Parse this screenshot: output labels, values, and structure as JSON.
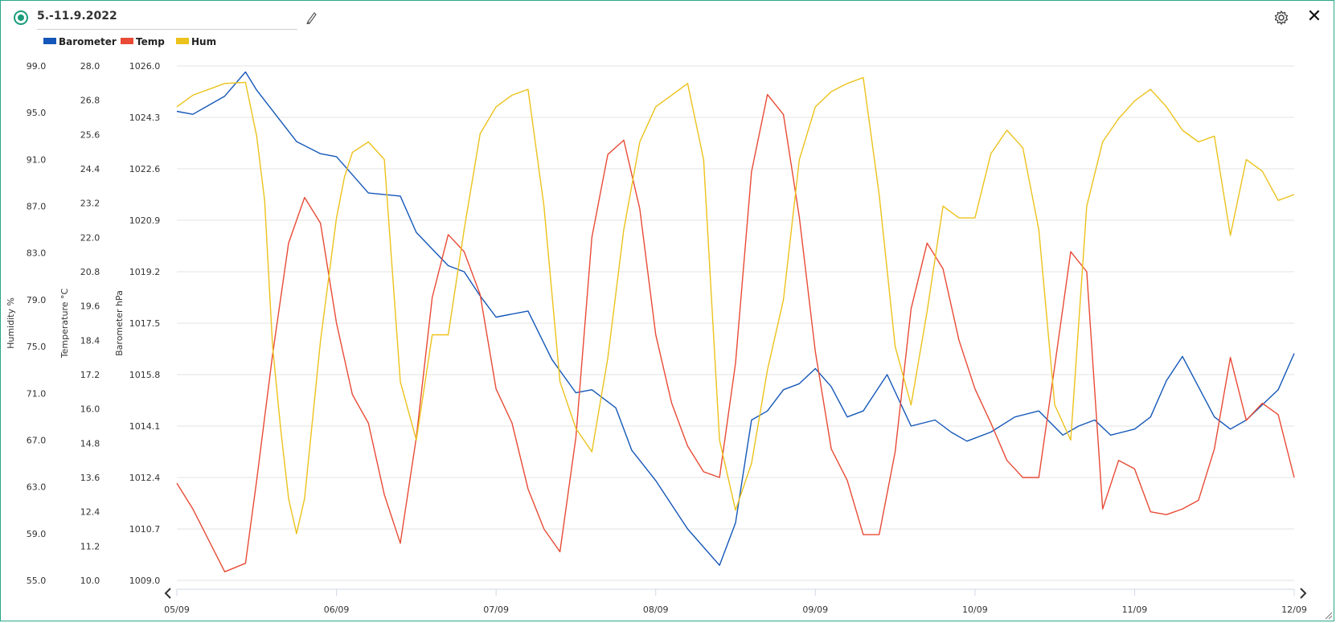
{
  "header": {
    "title": "5.-11.9.2022",
    "accent_color": "#1a9c7b",
    "icons": [
      "status-indicator-icon",
      "pencil-icon",
      "gear-icon",
      "close-icon",
      "chevron-left-icon",
      "chevron-right-icon",
      "resize-grip-icon"
    ]
  },
  "legend": {
    "items": [
      {
        "label": "Barometer",
        "color": "#1457b8"
      },
      {
        "label": "Temp",
        "color": "#e84a35"
      },
      {
        "label": "Hum",
        "color": "#ecc21c"
      }
    ]
  },
  "chart_data": {
    "type": "line",
    "x_unit": "days",
    "x_ticks": [
      "05/09",
      "06/09",
      "07/09",
      "08/09",
      "09/09",
      "10/09",
      "11/09",
      "12/09"
    ],
    "xlim": [
      "05/09",
      "12/09"
    ],
    "grid": true,
    "legend_position": "top-left",
    "axes": [
      {
        "id": "hum",
        "label": "Humidity %",
        "min": 55.0,
        "max": 99.0,
        "ticks": [
          "99.0",
          "95.0",
          "91.0",
          "87.0",
          "83.0",
          "79.0",
          "75.0",
          "71.0",
          "67.0",
          "63.0",
          "59.0",
          "55.0"
        ]
      },
      {
        "id": "temp",
        "label": "Temperature °C",
        "min": 10.0,
        "max": 28.0,
        "ticks": [
          "28.0",
          "26.8",
          "25.6",
          "24.4",
          "23.2",
          "22.0",
          "20.8",
          "19.6",
          "18.4",
          "17.2",
          "16.0",
          "14.8",
          "13.6",
          "12.4",
          "11.2",
          "10.0"
        ]
      },
      {
        "id": "baro",
        "label": "Barometer hPa",
        "min": 1009.0,
        "max": 1026.0,
        "ticks": [
          "1026.0",
          "1024.3",
          "1022.6",
          "1020.9",
          "1019.2",
          "1017.5",
          "1015.8",
          "1014.1",
          "1012.4",
          "1010.7",
          "1009.0"
        ]
      }
    ],
    "series": [
      {
        "name": "Barometer",
        "axis": "baro",
        "color": "#1457b8",
        "x": [
          0,
          0.1,
          0.3,
          0.43,
          0.5,
          0.75,
          0.9,
          1.0,
          1.2,
          1.4,
          1.5,
          1.7,
          1.8,
          1.9,
          2.0,
          2.2,
          2.35,
          2.5,
          2.6,
          2.75,
          2.85,
          3.0,
          3.2,
          3.4,
          3.5,
          3.6,
          3.7,
          3.8,
          3.9,
          4.0,
          4.1,
          4.2,
          4.3,
          4.45,
          4.6,
          4.75,
          4.85,
          4.95,
          5.1,
          5.25,
          5.4,
          5.55,
          5.65,
          5.75,
          5.85,
          6.0,
          6.1,
          6.2,
          6.3,
          6.5,
          6.6,
          6.7,
          6.8,
          6.9,
          7.0
        ],
        "y": [
          1024.5,
          1024.4,
          1025.0,
          1025.8,
          1025.2,
          1023.5,
          1023.1,
          1023.0,
          1021.8,
          1021.7,
          1020.5,
          1019.4,
          1019.2,
          1018.4,
          1017.7,
          1017.9,
          1016.3,
          1015.2,
          1015.3,
          1014.7,
          1013.3,
          1012.3,
          1010.7,
          1009.5,
          1010.9,
          1014.3,
          1014.6,
          1015.3,
          1015.5,
          1016.0,
          1015.4,
          1014.4,
          1014.6,
          1015.8,
          1014.1,
          1014.3,
          1013.9,
          1013.6,
          1013.9,
          1014.4,
          1014.6,
          1013.8,
          1014.1,
          1014.3,
          1013.8,
          1014.0,
          1014.4,
          1015.6,
          1016.4,
          1014.4,
          1014.0,
          1014.3,
          1014.8,
          1015.3,
          1016.5
        ]
      },
      {
        "name": "Temp",
        "axis": "temp",
        "color": "#e84a35",
        "x": [
          0,
          0.1,
          0.3,
          0.43,
          0.5,
          0.6,
          0.7,
          0.8,
          0.9,
          1.0,
          1.1,
          1.2,
          1.3,
          1.4,
          1.5,
          1.6,
          1.7,
          1.8,
          1.9,
          2.0,
          2.1,
          2.2,
          2.3,
          2.4,
          2.5,
          2.6,
          2.7,
          2.8,
          2.9,
          3.0,
          3.1,
          3.2,
          3.3,
          3.4,
          3.5,
          3.6,
          3.7,
          3.8,
          3.9,
          4.0,
          4.1,
          4.2,
          4.3,
          4.4,
          4.5,
          4.6,
          4.7,
          4.8,
          4.9,
          5.0,
          5.1,
          5.2,
          5.3,
          5.4,
          5.5,
          5.6,
          5.7,
          5.8,
          5.9,
          6.0,
          6.1,
          6.2,
          6.3,
          6.4,
          6.5,
          6.6,
          6.7,
          6.8,
          6.9,
          7.0
        ],
        "y": [
          13.4,
          12.5,
          10.3,
          10.6,
          13.5,
          17.9,
          21.8,
          23.4,
          22.5,
          19.0,
          16.5,
          15.5,
          13.0,
          11.3,
          15.0,
          19.9,
          22.1,
          21.5,
          20.0,
          16.7,
          15.5,
          13.2,
          11.8,
          11.0,
          15.0,
          22.0,
          24.9,
          25.4,
          23.0,
          18.6,
          16.2,
          14.7,
          13.8,
          13.6,
          17.6,
          24.3,
          27.0,
          26.3,
          22.7,
          18.0,
          14.6,
          13.5,
          11.6,
          11.6,
          14.5,
          19.5,
          21.8,
          20.9,
          18.4,
          16.7,
          15.5,
          14.2,
          13.6,
          13.6,
          17.5,
          21.5,
          20.8,
          12.5,
          14.2,
          13.9,
          12.4,
          12.3,
          12.5,
          12.8,
          14.6,
          17.8,
          15.6,
          16.2,
          15.8,
          13.6
        ]
      },
      {
        "name": "Hum",
        "axis": "hum",
        "color": "#ecc21c",
        "x": [
          0,
          0.1,
          0.3,
          0.43,
          0.5,
          0.55,
          0.6,
          0.65,
          0.7,
          0.75,
          0.8,
          0.9,
          1.0,
          1.05,
          1.1,
          1.2,
          1.3,
          1.4,
          1.5,
          1.6,
          1.7,
          1.8,
          1.9,
          2.0,
          2.1,
          2.2,
          2.3,
          2.4,
          2.5,
          2.6,
          2.7,
          2.8,
          2.9,
          3.0,
          3.1,
          3.2,
          3.3,
          3.4,
          3.5,
          3.6,
          3.7,
          3.8,
          3.9,
          4.0,
          4.1,
          4.2,
          4.3,
          4.4,
          4.5,
          4.6,
          4.7,
          4.8,
          4.9,
          5.0,
          5.1,
          5.2,
          5.3,
          5.4,
          5.5,
          5.6,
          5.7,
          5.8,
          5.9,
          6.0,
          6.1,
          6.2,
          6.3,
          6.4,
          6.5,
          6.6,
          6.7,
          6.8,
          6.9,
          7.0
        ],
        "y": [
          95.5,
          96.5,
          97.5,
          97.6,
          93.0,
          87.5,
          75.0,
          68.0,
          62.0,
          59.0,
          62.0,
          75.5,
          86.0,
          89.5,
          91.6,
          92.5,
          91.0,
          72.0,
          67.0,
          76.0,
          76.0,
          85.0,
          93.2,
          95.5,
          96.5,
          97.0,
          87.0,
          72.0,
          68.0,
          66.0,
          74.0,
          85.0,
          92.5,
          95.5,
          96.5,
          97.5,
          91.0,
          67.0,
          61.0,
          65.0,
          73.0,
          79.0,
          91.0,
          95.5,
          96.8,
          97.5,
          98.0,
          88.0,
          75.0,
          70.0,
          78.0,
          87.0,
          86.0,
          86.0,
          91.5,
          93.5,
          92.0,
          85.0,
          70.0,
          67.0,
          87.0,
          92.5,
          94.5,
          96.0,
          97.0,
          95.5,
          93.5,
          92.5,
          93.0,
          84.5,
          91.0,
          90.0,
          87.5,
          88.0
        ]
      }
    ]
  }
}
